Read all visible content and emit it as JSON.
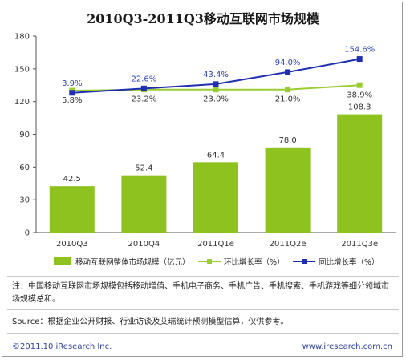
{
  "chart_data": {
    "type": "bar",
    "title": "2010Q3-2011Q3移动互联网市场规模",
    "categories": [
      "2010Q3",
      "2010Q4",
      "2011Q1e",
      "2011Q2e",
      "2011Q3e"
    ],
    "ylim": [
      0,
      180
    ],
    "yticks": [
      0,
      30,
      60,
      90,
      120,
      150,
      180
    ],
    "series": [
      {
        "name": "移动互联网整体市场规模（亿元）",
        "type": "bar",
        "color": "#8dc21f",
        "values": [
          42.5,
          52.4,
          64.4,
          78.0,
          108.3
        ],
        "labels": [
          "42.5",
          "52.4",
          "64.4",
          "78.0",
          "108.3"
        ]
      },
      {
        "name": "环比增长率（%）",
        "type": "line",
        "color": "#9acd32",
        "values": [
          130,
          131,
          131,
          131,
          135
        ],
        "labels": [
          "5.8%",
          "23.2%",
          "23.0%",
          "21.0%",
          "38.9%"
        ]
      },
      {
        "name": "同比增长率（%）",
        "type": "line",
        "color": "#1f2fb0",
        "values": [
          128,
          132,
          136,
          147,
          159
        ],
        "labels": [
          "3.9%",
          "22.6%",
          "43.4%",
          "94.0%",
          "154.6%"
        ]
      }
    ],
    "grid": false,
    "legend_position": "bottom"
  },
  "notes": {
    "note": "注：中国移动互联网市场规模包括移动增值、手机电子商务、手机广告、手机搜索、手机游戏等细分领域市场规模总和。",
    "source": "Source：根据企业公开财报、行业访谈及艾瑞统计预测模型估算，仅供参考。"
  },
  "footer": {
    "copyright": "©2011.10 iResearch Inc.",
    "url": "www.iresearch.com.cn"
  }
}
